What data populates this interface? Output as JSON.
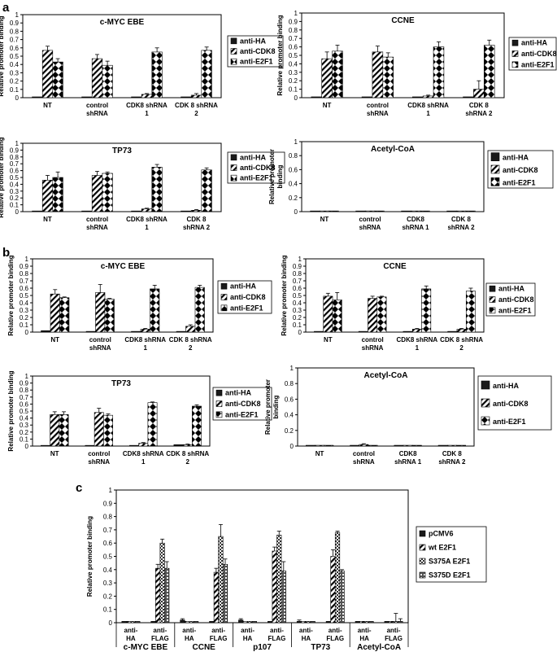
{
  "figure": {
    "panel_letters": [
      "a",
      "b",
      "c"
    ]
  },
  "colors": {
    "anti_HA": "#1a1a1a",
    "ink": "#000000",
    "background": "#ffffff"
  },
  "series_patterns": {
    "anti-HA": "solid",
    "anti-CDK8": "diagonal",
    "anti-E2F1": "diamond",
    "pCMV6": "solid",
    "wt E2F1": "diagonal",
    "S375A E2F1": "checker",
    "S375D E2F1": "grid"
  },
  "chart_data": [
    {
      "id": "a1",
      "panel": "a",
      "type": "bar",
      "title": "c-MYC EBE",
      "ylabel": "Relative promoter binding",
      "ylim": [
        0,
        1
      ],
      "ytick_step": 0.1,
      "categories": [
        "NT",
        "control\nshRNA",
        "CDK8 shRNA\n1",
        "CDK 8 shRNA\n2"
      ],
      "series": [
        {
          "name": "anti-HA",
          "values": [
            0.01,
            0.01,
            0.01,
            0.01
          ],
          "errors": [
            0,
            0,
            0,
            0
          ]
        },
        {
          "name": "anti-CDK8",
          "values": [
            0.57,
            0.47,
            0.04,
            0.03
          ],
          "errors": [
            0.05,
            0.05,
            0.01,
            0.02
          ]
        },
        {
          "name": "anti-E2F1",
          "values": [
            0.43,
            0.39,
            0.55,
            0.57
          ],
          "errors": [
            0.04,
            0.05,
            0.05,
            0.04
          ]
        }
      ],
      "legend": [
        "anti-HA",
        "anti-CDK8",
        "anti-E2F1"
      ]
    },
    {
      "id": "a2",
      "panel": "a",
      "type": "bar",
      "title": "CCNE",
      "ylabel": "Relative promoter binding",
      "ylim": [
        0,
        1
      ],
      "ytick_step": 0.1,
      "categories": [
        "NT",
        "control\nshRNA",
        "CDK8 shRNA\n1",
        "CDK 8\nshRNA 2"
      ],
      "series": [
        {
          "name": "anti-HA",
          "values": [
            0.01,
            0.01,
            0.01,
            0.01
          ],
          "errors": [
            0,
            0,
            0,
            0
          ]
        },
        {
          "name": "anti-CDK8",
          "values": [
            0.46,
            0.54,
            0.02,
            0.1
          ],
          "errors": [
            0.08,
            0.07,
            0.01,
            0.1
          ]
        },
        {
          "name": "anti-E2F1",
          "values": [
            0.55,
            0.48,
            0.6,
            0.62
          ],
          "errors": [
            0.07,
            0.05,
            0.06,
            0.06
          ]
        }
      ],
      "legend": [
        "anti-HA",
        "anti-CDK8",
        "anti-E2F1"
      ]
    },
    {
      "id": "a3",
      "panel": "a",
      "type": "bar",
      "title": "TP73",
      "ylabel": "Relative promoter binding",
      "ylim": [
        0,
        1
      ],
      "ytick_step": 0.1,
      "categories": [
        "NT",
        "control\nshRNA",
        "CDK8 shRNA\n1",
        "CDK 8\nshRNA 2"
      ],
      "series": [
        {
          "name": "anti-HA",
          "values": [
            0.01,
            0.01,
            0.01,
            0.01
          ],
          "errors": [
            0,
            0,
            0,
            0
          ]
        },
        {
          "name": "anti-CDK8",
          "values": [
            0.46,
            0.53,
            0.04,
            0.02
          ],
          "errors": [
            0.07,
            0.06,
            0.01,
            0.01
          ]
        },
        {
          "name": "anti-E2F1",
          "values": [
            0.5,
            0.56,
            0.65,
            0.61
          ],
          "errors": [
            0.08,
            0.02,
            0.04,
            0.03
          ]
        }
      ],
      "legend": [
        "anti-HA",
        "anti-CDK8",
        "anti-E2F1"
      ]
    },
    {
      "id": "a4",
      "panel": "a",
      "type": "bar",
      "title": "Acetyl-CoA",
      "ylabel": "Relative promoter\nbinding",
      "ylim": [
        0,
        1
      ],
      "ytick_step": 0.2,
      "categories": [
        "NT",
        "control\nshRNA",
        "CDK8\nshRNA 1",
        "CDK 8\nshRNA 2"
      ],
      "series": [
        {
          "name": "anti-HA",
          "values": [
            0.01,
            0.01,
            0.01,
            0.01
          ],
          "errors": [
            0,
            0,
            0,
            0
          ]
        },
        {
          "name": "anti-CDK8",
          "values": [
            0.01,
            0.01,
            0.01,
            0.01
          ],
          "errors": [
            0,
            0,
            0,
            0
          ]
        },
        {
          "name": "anti-E2F1",
          "values": [
            0.01,
            0.01,
            0.01,
            0.01
          ],
          "errors": [
            0,
            0,
            0,
            0
          ]
        }
      ],
      "legend": [
        "anti-HA",
        "anti-CDK8",
        "anti-E2F1"
      ]
    },
    {
      "id": "b1",
      "panel": "b",
      "type": "bar",
      "title": "c-MYC EBE",
      "ylabel": "Relative promoter binding",
      "ylim": [
        0,
        1
      ],
      "ytick_step": 0.1,
      "categories": [
        "NT",
        "control\nshRNA",
        "CDK8 shRNA\n1",
        "CDK 8 shRNA\n2"
      ],
      "series": [
        {
          "name": "anti-HA",
          "values": [
            0.02,
            0.01,
            0.01,
            0.01
          ],
          "errors": [
            0,
            0,
            0,
            0
          ]
        },
        {
          "name": "anti-CDK8",
          "values": [
            0.52,
            0.54,
            0.04,
            0.08
          ],
          "errors": [
            0.06,
            0.11,
            0.01,
            0.02
          ]
        },
        {
          "name": "anti-E2F1",
          "values": [
            0.47,
            0.45,
            0.59,
            0.61
          ],
          "errors": [
            0.01,
            0.01,
            0.05,
            0.03
          ]
        }
      ],
      "legend": [
        "anti-HA",
        "anti-CDK8",
        "anti-E2F1"
      ]
    },
    {
      "id": "b2",
      "panel": "b",
      "type": "bar",
      "title": "CCNE",
      "ylabel": "Relative promoter binding",
      "ylim": [
        0,
        1
      ],
      "ytick_step": 0.1,
      "categories": [
        "NT",
        "control\nshRNA",
        "CDK8 shRNA\n1",
        "CDK 8 shRNA\n2"
      ],
      "series": [
        {
          "name": "anti-HA",
          "values": [
            0.01,
            0.01,
            0.01,
            0.01
          ],
          "errors": [
            0,
            0,
            0,
            0
          ]
        },
        {
          "name": "anti-CDK8",
          "values": [
            0.49,
            0.46,
            0.04,
            0.04
          ],
          "errors": [
            0.04,
            0.03,
            0.01,
            0.01
          ]
        },
        {
          "name": "anti-E2F1",
          "values": [
            0.44,
            0.48,
            0.59,
            0.56
          ],
          "errors": [
            0.1,
            0.01,
            0.04,
            0.04
          ]
        }
      ],
      "legend": [
        "anti-HA",
        "anti-CDK8",
        "anti-E2F1"
      ]
    },
    {
      "id": "b3",
      "panel": "b",
      "type": "bar",
      "title": "TP73",
      "ylabel": "Relative promoter binding",
      "ylim": [
        0,
        1
      ],
      "ytick_step": 0.1,
      "categories": [
        "NT",
        "control\nshRNA",
        "CDK8 shRNA\n1",
        "CDK 8 shRNA\n2"
      ],
      "series": [
        {
          "name": "anti-HA",
          "values": [
            0.01,
            0.01,
            0.01,
            0.02
          ],
          "errors": [
            0,
            0,
            0,
            0
          ]
        },
        {
          "name": "anti-CDK8",
          "values": [
            0.45,
            0.48,
            0.04,
            0.02
          ],
          "errors": [
            0.04,
            0.06,
            0.01,
            0.01
          ]
        },
        {
          "name": "anti-E2F1",
          "values": [
            0.45,
            0.44,
            0.62,
            0.57
          ],
          "errors": [
            0.04,
            0.02,
            0.01,
            0.02
          ]
        }
      ],
      "legend": [
        "anti-HA",
        "anti-CDK8",
        "anti-E2F1"
      ]
    },
    {
      "id": "b4",
      "panel": "b",
      "type": "bar",
      "title": "Acetyl-CoA",
      "ylabel": "Relative promoter\nbinding",
      "ylim": [
        0,
        1
      ],
      "ytick_step": 0.2,
      "categories": [
        "NT",
        "control\nshRNA",
        "CDK8\nshRNA 1",
        "CDK 8\nshRNA 2"
      ],
      "series": [
        {
          "name": "anti-HA",
          "values": [
            0.01,
            0.01,
            0.01,
            0.01
          ],
          "errors": [
            0,
            0,
            0,
            0
          ]
        },
        {
          "name": "anti-CDK8",
          "values": [
            0.01,
            0.02,
            0.01,
            0.01
          ],
          "errors": [
            0,
            0.01,
            0,
            0
          ]
        },
        {
          "name": "anti-E2F1",
          "values": [
            0.01,
            0.01,
            0.01,
            0.01
          ],
          "errors": [
            0,
            0,
            0,
            0
          ]
        }
      ],
      "legend": [
        "anti-HA",
        "anti-CDK8",
        "anti-E2F1"
      ]
    },
    {
      "id": "c",
      "panel": "c",
      "type": "bar",
      "title": "",
      "ylabel": "Relative promoter binding",
      "ylim": [
        0,
        1
      ],
      "ytick_step": 0.1,
      "categories": [
        "anti-\nHA",
        "anti-\nFLAG",
        "anti-\nHA",
        "anti-\nFLAG",
        "anti-\nHA",
        "anti-\nFLAG",
        "anti-\nHA",
        "anti-\nFLAG",
        "anti-\nHA",
        "anti-\nFLAG"
      ],
      "groups": [
        "c-MYC EBE",
        "CCNE",
        "p107",
        "TP73",
        "Acetyl-CoA"
      ],
      "series": [
        {
          "name": "pCMV6",
          "values": [
            0.01,
            0.01,
            0.02,
            0.01,
            0.02,
            0.01,
            0.01,
            0.01,
            0.01,
            0.01
          ],
          "errors": [
            0,
            0,
            0.01,
            0,
            0.01,
            0,
            0.01,
            0,
            0,
            0
          ]
        },
        {
          "name": "wt E2F1",
          "values": [
            0.01,
            0.41,
            0.01,
            0.38,
            0.01,
            0.54,
            0.01,
            0.5,
            0.01,
            0.01
          ],
          "errors": [
            0,
            0.03,
            0,
            0.03,
            0,
            0.03,
            0,
            0.05,
            0,
            0
          ]
        },
        {
          "name": "S375A E2F1",
          "values": [
            0.01,
            0.6,
            0.01,
            0.65,
            0.01,
            0.66,
            0.01,
            0.68,
            0.01,
            0.01
          ],
          "errors": [
            0,
            0.03,
            0,
            0.09,
            0,
            0.03,
            0,
            0.01,
            0,
            0.06
          ]
        },
        {
          "name": "S375D E2F1",
          "values": [
            0.01,
            0.41,
            0.01,
            0.44,
            0.01,
            0.39,
            0.01,
            0.39,
            0.01,
            0.01
          ],
          "errors": [
            0,
            0.05,
            0,
            0.04,
            0,
            0.07,
            0,
            0.01,
            0,
            0.02
          ]
        }
      ],
      "legend": [
        "pCMV6",
        "wt E2F1",
        "S375A E2F1",
        "S375D E2F1"
      ]
    }
  ]
}
